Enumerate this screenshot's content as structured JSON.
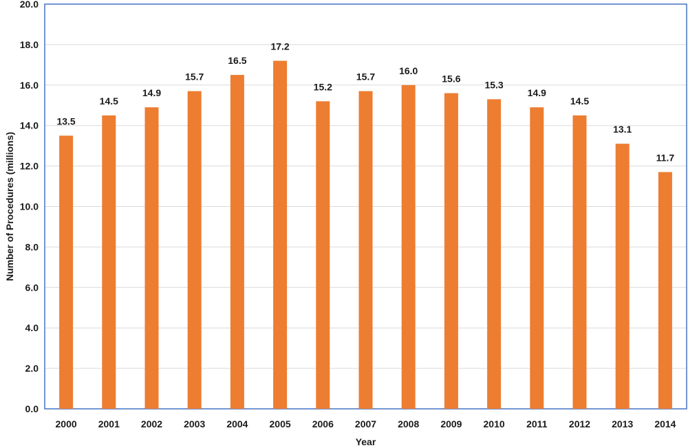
{
  "colors": {
    "bar": "#ED7D31",
    "frame": "#4472C4",
    "grid": "#D9D9D9",
    "text": "#1A1A1A"
  },
  "chart_data": {
    "type": "bar",
    "title": "",
    "xlabel": "Year",
    "ylabel": "Number of Procedures (millions)",
    "categories": [
      "2000",
      "2001",
      "2002",
      "2003",
      "2004",
      "2005",
      "2006",
      "2007",
      "2008",
      "2009",
      "2010",
      "2011",
      "2012",
      "2013",
      "2014"
    ],
    "values": [
      13.5,
      14.5,
      14.9,
      15.7,
      16.5,
      17.2,
      15.2,
      15.7,
      16.0,
      15.6,
      15.3,
      14.9,
      14.5,
      13.1,
      11.7
    ],
    "value_labels": [
      "13.5",
      "14.5",
      "14.9",
      "15.7",
      "16.5",
      "17.2",
      "15.2",
      "15.7",
      "16.0",
      "15.6",
      "15.3",
      "14.9",
      "14.5",
      "13.1",
      "11.7"
    ],
    "ylim": [
      0,
      20
    ],
    "yticks": [
      0,
      2,
      4,
      6,
      8,
      10,
      12,
      14,
      16,
      18,
      20
    ],
    "ytick_labels": [
      "0.0",
      "2.0",
      "4.0",
      "6.0",
      "8.0",
      "10.0",
      "12.0",
      "14.0",
      "16.0",
      "18.0",
      "20.0"
    ],
    "grid": true,
    "legend": "none"
  }
}
